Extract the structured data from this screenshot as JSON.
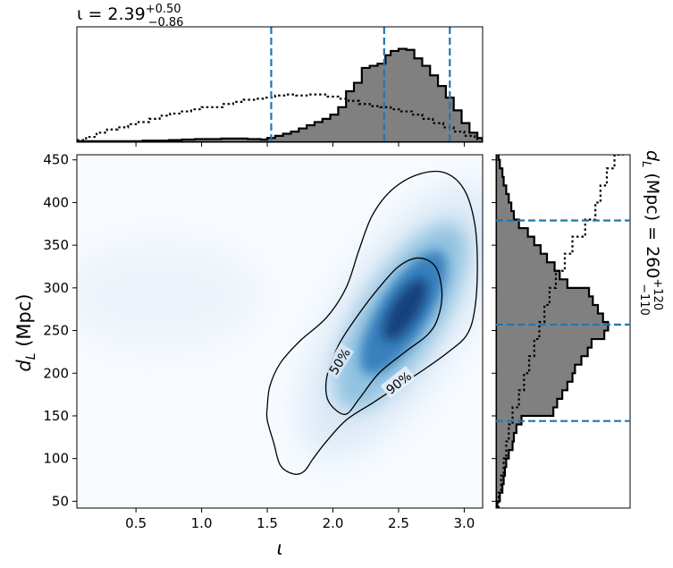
{
  "chart_data": [
    {
      "panel": "top-marginal",
      "type": "histogram",
      "title_main": "ι = 2.39",
      "title_sup": "+0.50",
      "title_sub": "−0.86",
      "x": {
        "min": 0.05,
        "max": 3.14
      },
      "y": {
        "min": 0,
        "max": 1.0,
        "ticks_shown": false
      },
      "posterior_steps": [
        [
          0.05,
          0.01
        ],
        [
          0.15,
          0.01
        ],
        [
          0.25,
          0.01
        ],
        [
          0.35,
          0.01
        ],
        [
          0.45,
          0.01
        ],
        [
          0.55,
          0.015
        ],
        [
          0.65,
          0.015
        ],
        [
          0.75,
          0.02
        ],
        [
          0.85,
          0.025
        ],
        [
          0.95,
          0.03
        ],
        [
          1.05,
          0.03
        ],
        [
          1.15,
          0.035
        ],
        [
          1.25,
          0.035
        ],
        [
          1.35,
          0.03
        ],
        [
          1.45,
          0.025
        ],
        [
          1.5,
          0.04
        ],
        [
          1.56,
          0.06
        ],
        [
          1.62,
          0.08
        ],
        [
          1.68,
          0.1
        ],
        [
          1.74,
          0.13
        ],
        [
          1.8,
          0.16
        ],
        [
          1.86,
          0.19
        ],
        [
          1.92,
          0.22
        ],
        [
          1.98,
          0.26
        ],
        [
          2.04,
          0.33
        ],
        [
          2.1,
          0.48
        ],
        [
          2.16,
          0.56
        ],
        [
          2.22,
          0.7
        ],
        [
          2.28,
          0.72
        ],
        [
          2.34,
          0.74
        ],
        [
          2.4,
          0.82
        ],
        [
          2.44,
          0.86
        ],
        [
          2.5,
          0.88
        ],
        [
          2.56,
          0.87
        ],
        [
          2.62,
          0.79
        ],
        [
          2.68,
          0.72
        ],
        [
          2.74,
          0.63
        ],
        [
          2.8,
          0.53
        ],
        [
          2.86,
          0.42
        ],
        [
          2.92,
          0.3
        ],
        [
          2.98,
          0.18
        ],
        [
          3.04,
          0.09
        ],
        [
          3.1,
          0.04
        ]
      ],
      "prior_steps": [
        [
          0.05,
          0.02
        ],
        [
          0.12,
          0.05
        ],
        [
          0.2,
          0.09
        ],
        [
          0.28,
          0.12
        ],
        [
          0.36,
          0.14
        ],
        [
          0.44,
          0.17
        ],
        [
          0.52,
          0.19
        ],
        [
          0.6,
          0.22
        ],
        [
          0.68,
          0.25
        ],
        [
          0.76,
          0.27
        ],
        [
          0.84,
          0.29
        ],
        [
          0.92,
          0.31
        ],
        [
          1.0,
          0.33
        ],
        [
          1.08,
          0.33
        ],
        [
          1.16,
          0.36
        ],
        [
          1.24,
          0.38
        ],
        [
          1.32,
          0.4
        ],
        [
          1.4,
          0.41
        ],
        [
          1.48,
          0.42
        ],
        [
          1.56,
          0.44
        ],
        [
          1.64,
          0.45
        ],
        [
          1.72,
          0.44
        ],
        [
          1.8,
          0.45
        ],
        [
          1.88,
          0.45
        ],
        [
          1.96,
          0.43
        ],
        [
          2.04,
          0.41
        ],
        [
          2.12,
          0.39
        ],
        [
          2.2,
          0.36
        ],
        [
          2.28,
          0.34
        ],
        [
          2.36,
          0.33
        ],
        [
          2.44,
          0.31
        ],
        [
          2.52,
          0.29
        ],
        [
          2.6,
          0.26
        ],
        [
          2.68,
          0.22
        ],
        [
          2.76,
          0.18
        ],
        [
          2.84,
          0.14
        ],
        [
          2.92,
          0.1
        ],
        [
          3.0,
          0.06
        ],
        [
          3.08,
          0.03
        ]
      ],
      "median": 2.39,
      "interval": [
        1.53,
        2.89
      ]
    },
    {
      "panel": "joint",
      "type": "heatmap",
      "xlabel": "ι",
      "ylabel": "d",
      "ylabel_sub": "L",
      "ylabel_unit": " (Mpc)",
      "x": {
        "min": 0.05,
        "max": 3.14,
        "ticks": [
          0.5,
          1.0,
          1.5,
          2.0,
          2.5,
          3.0
        ],
        "tick_labels": [
          "0.5",
          "1.0",
          "1.5",
          "2.0",
          "2.5",
          "3.0"
        ]
      },
      "y": {
        "min": 42,
        "max": 456,
        "ticks": [
          50,
          100,
          150,
          200,
          250,
          300,
          350,
          400,
          450
        ],
        "tick_labels": [
          "50",
          "100",
          "150",
          "200",
          "250",
          "300",
          "350",
          "400",
          "450"
        ]
      },
      "density_peak": {
        "x": 2.48,
        "y": 255
      },
      "contours": [
        {
          "level": "50%",
          "points": [
            [
              2.0,
              160
            ],
            [
              1.95,
              175
            ],
            [
              1.96,
              200
            ],
            [
              2.05,
              235
            ],
            [
              2.2,
              270
            ],
            [
              2.35,
              300
            ],
            [
              2.5,
              325
            ],
            [
              2.65,
              335
            ],
            [
              2.78,
              325
            ],
            [
              2.83,
              295
            ],
            [
              2.8,
              265
            ],
            [
              2.72,
              245
            ],
            [
              2.55,
              225
            ],
            [
              2.35,
              200
            ],
            [
              2.2,
              170
            ],
            [
              2.1,
              152
            ],
            [
              2.0,
              160
            ]
          ]
        },
        {
          "level": "90%",
          "points": [
            [
              1.5,
              160
            ],
            [
              1.52,
              185
            ],
            [
              1.6,
              212
            ],
            [
              1.75,
              238
            ],
            [
              1.95,
              265
            ],
            [
              2.1,
              300
            ],
            [
              2.2,
              345
            ],
            [
              2.3,
              385
            ],
            [
              2.45,
              415
            ],
            [
              2.65,
              433
            ],
            [
              2.85,
              435
            ],
            [
              3.0,
              415
            ],
            [
              3.08,
              375
            ],
            [
              3.1,
              325
            ],
            [
              3.08,
              275
            ],
            [
              3.02,
              245
            ],
            [
              2.88,
              225
            ],
            [
              2.7,
              205
            ],
            [
              2.5,
              185
            ],
            [
              2.3,
              165
            ],
            [
              2.1,
              145
            ],
            [
              1.95,
              120
            ],
            [
              1.85,
              100
            ],
            [
              1.78,
              85
            ],
            [
              1.7,
              82
            ],
            [
              1.6,
              92
            ],
            [
              1.55,
              118
            ],
            [
              1.5,
              145
            ],
            [
              1.5,
              160
            ]
          ]
        }
      ]
    },
    {
      "panel": "right-marginal",
      "type": "histogram",
      "title_main": "d",
      "title_sub_L": "L",
      "title_rest": " (Mpc) = 260",
      "title_sup": "+120",
      "title_sub": "−110",
      "y": {
        "min": 42,
        "max": 456
      },
      "x": {
        "min": 0,
        "max": 1.0,
        "ticks_shown": false
      },
      "posterior_steps": [
        [
          42,
          0.01
        ],
        [
          50,
          0.03
        ],
        [
          60,
          0.05
        ],
        [
          70,
          0.06
        ],
        [
          80,
          0.07
        ],
        [
          90,
          0.08
        ],
        [
          100,
          0.1
        ],
        [
          110,
          0.13
        ],
        [
          120,
          0.14
        ],
        [
          130,
          0.16
        ],
        [
          140,
          0.2
        ],
        [
          150,
          0.45
        ],
        [
          160,
          0.48
        ],
        [
          170,
          0.52
        ],
        [
          180,
          0.56
        ],
        [
          190,
          0.6
        ],
        [
          200,
          0.62
        ],
        [
          210,
          0.67
        ],
        [
          220,
          0.72
        ],
        [
          230,
          0.75
        ],
        [
          240,
          0.85
        ],
        [
          250,
          0.88
        ],
        [
          260,
          0.84
        ],
        [
          270,
          0.8
        ],
        [
          280,
          0.76
        ],
        [
          290,
          0.73
        ],
        [
          300,
          0.56
        ],
        [
          310,
          0.5
        ],
        [
          320,
          0.46
        ],
        [
          330,
          0.4
        ],
        [
          340,
          0.35
        ],
        [
          350,
          0.3
        ],
        [
          360,
          0.25
        ],
        [
          370,
          0.18
        ],
        [
          380,
          0.14
        ],
        [
          390,
          0.12
        ],
        [
          400,
          0.1
        ],
        [
          410,
          0.08
        ],
        [
          420,
          0.06
        ],
        [
          430,
          0.05
        ],
        [
          440,
          0.03
        ],
        [
          450,
          0.02
        ]
      ],
      "prior_steps": [
        [
          42,
          0.02
        ],
        [
          60,
          0.04
        ],
        [
          80,
          0.06
        ],
        [
          100,
          0.08
        ],
        [
          120,
          0.1
        ],
        [
          140,
          0.13
        ],
        [
          160,
          0.18
        ],
        [
          180,
          0.22
        ],
        [
          200,
          0.26
        ],
        [
          220,
          0.3
        ],
        [
          240,
          0.34
        ],
        [
          260,
          0.38
        ],
        [
          280,
          0.42
        ],
        [
          300,
          0.47
        ],
        [
          320,
          0.54
        ],
        [
          340,
          0.6
        ],
        [
          360,
          0.7
        ],
        [
          380,
          0.78
        ],
        [
          400,
          0.82
        ],
        [
          420,
          0.87
        ],
        [
          440,
          0.93
        ],
        [
          456,
          1.0
        ]
      ],
      "median": 257,
      "interval": [
        144,
        379
      ]
    }
  ],
  "colors": {
    "accent": "#1f77b4",
    "fill": "#808080",
    "line": "#000000"
  }
}
